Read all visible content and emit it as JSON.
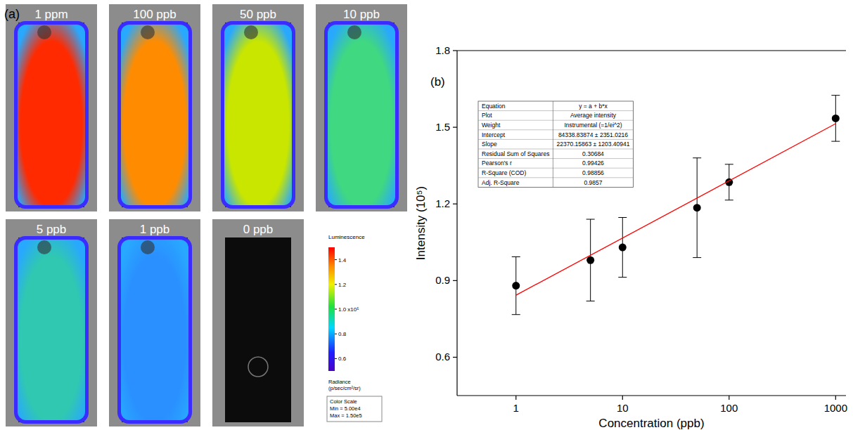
{
  "chart_data": {
    "type": "scatter",
    "panel": "(b)",
    "x_label": "Concentration (ppb)",
    "y_label": "Intensity (10⁵)",
    "log": "x",
    "grid": false,
    "xlim": [
      0.28,
      1250
    ],
    "xticks": [
      1,
      10,
      100,
      1000
    ],
    "ylim": [
      0.45,
      1.8
    ],
    "yticks": [
      0.6,
      0.9,
      1.2,
      1.5,
      1.8
    ],
    "x": [
      1,
      5,
      10,
      50,
      100,
      1000
    ],
    "series": [
      {
        "type": "scatter",
        "color": "#000000",
        "marker": "circle",
        "values": [
          0.88,
          0.98,
          1.03,
          1.185,
          1.285,
          1.535
        ],
        "errors": [
          0.113,
          0.16,
          0.117,
          0.195,
          0.07,
          0.09
        ]
      },
      {
        "type": "line",
        "color": "#ff0000",
        "line_style": "solid",
        "x": [
          1,
          1000
        ],
        "values": [
          0.843,
          1.514
        ]
      }
    ],
    "fit_table": [
      [
        "Equation",
        "y = a + b*x"
      ],
      [
        "Plot",
        "Average intensity"
      ],
      [
        "Weight",
        "Instrumental (=1/ei^2)"
      ],
      [
        "Intercept",
        "84338.83874 ± 2351.0216"
      ],
      [
        "Slope",
        "22370.15863 ± 1203.40941"
      ],
      [
        "Residual Sum of Squares",
        "0.30684"
      ],
      [
        "Pearson's r",
        "0.99426"
      ],
      [
        "R-Square (COD)",
        "0.98856"
      ],
      [
        "Adj. R-Square",
        "0.9857"
      ]
    ]
  },
  "image_panel": {
    "panel": "(a)",
    "strips": [
      {
        "label": "1 ppm",
        "color": "#ff2a00"
      },
      {
        "label": "100 ppb",
        "color": "#ff8c00"
      },
      {
        "label": "50 ppb",
        "color": "#c8e600"
      },
      {
        "label": "10 ppb",
        "color": "#40d880"
      },
      {
        "label": "5 ppb",
        "color": "#30c8b0"
      },
      {
        "label": "1 ppb",
        "color": "#2a90ff"
      },
      {
        "label": "0 ppb",
        "color": "#0c0c0c"
      }
    ],
    "colorbar": {
      "title": "Luminescence",
      "range": [
        0.5,
        1.5
      ],
      "ticks": [
        1.4,
        1.2,
        {
          "value": 1.0,
          "label": "1.0 x10⁵"
        },
        0.8,
        0.6
      ],
      "unit_label": [
        "Radiance",
        "(p/sec/cm²/sr)"
      ],
      "scale_box": [
        "Color Scale",
        "Min = 5.00e4",
        "Max = 1.50e5"
      ]
    }
  }
}
